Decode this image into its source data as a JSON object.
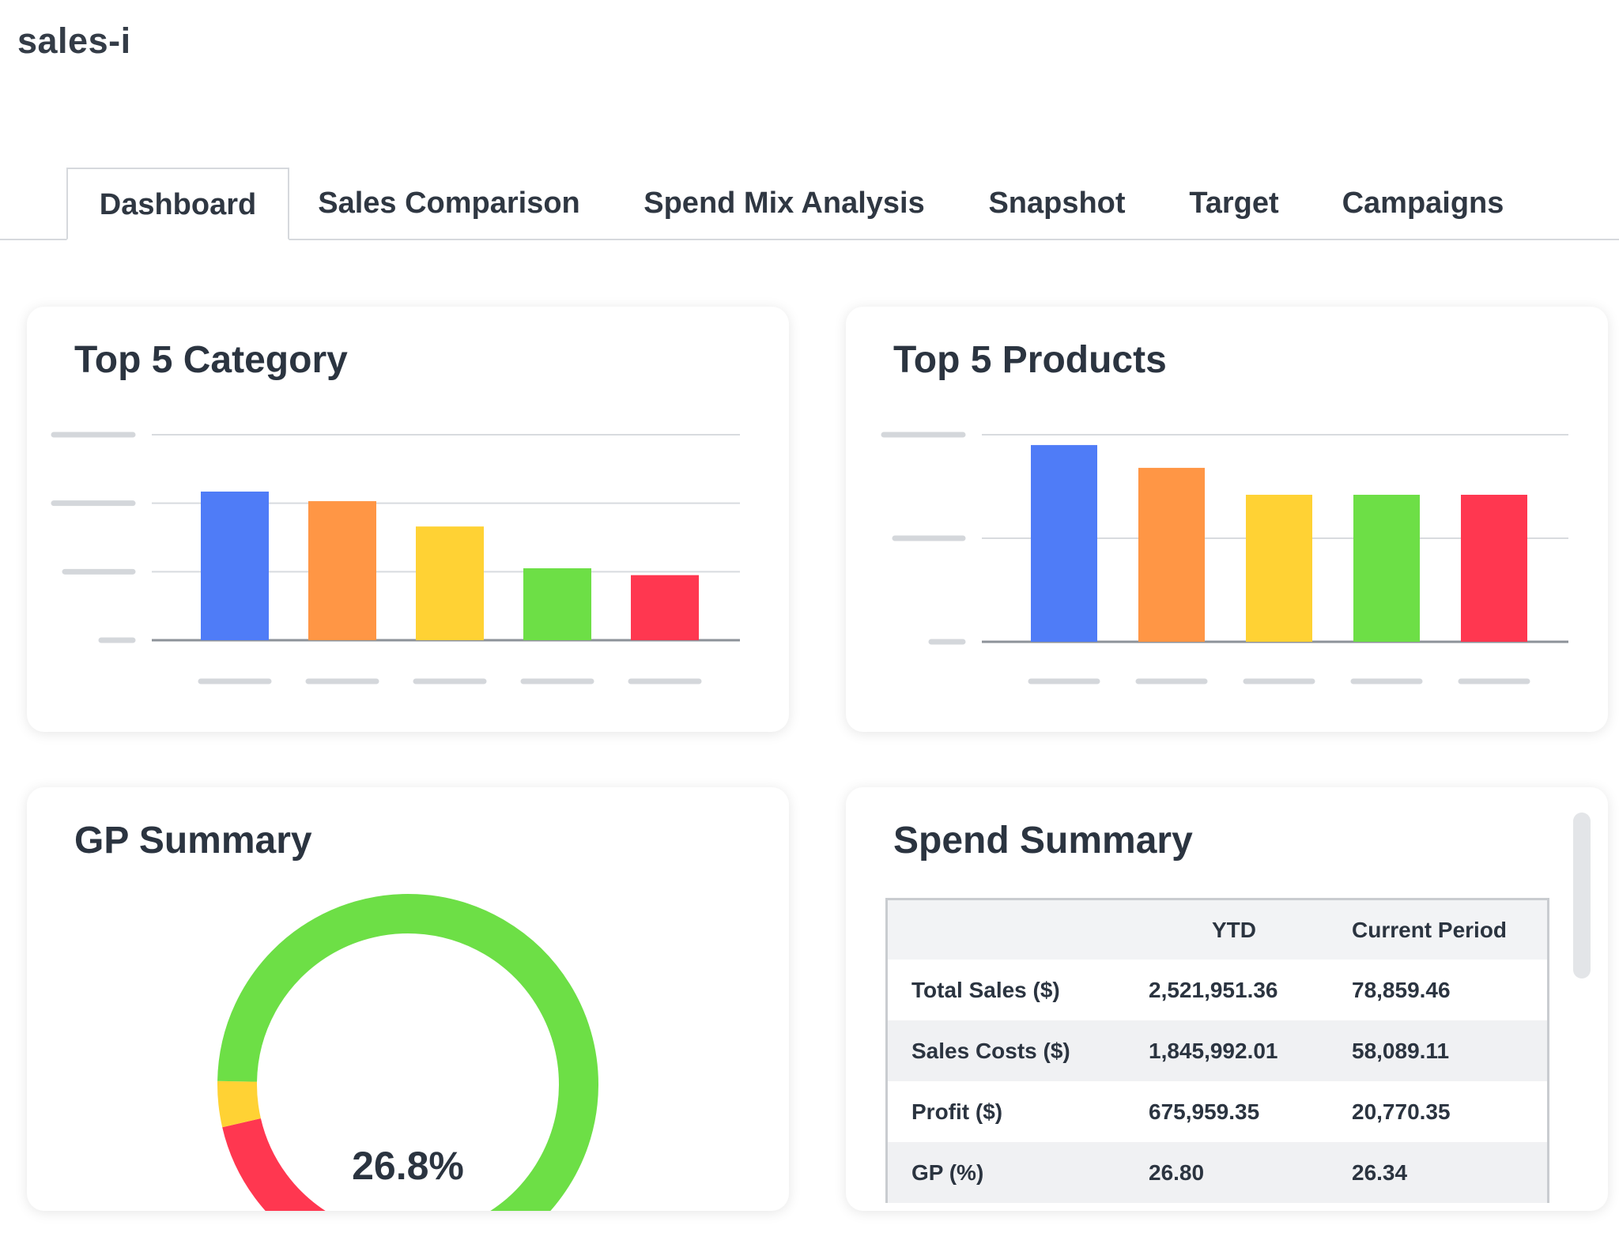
{
  "app": {
    "title": "sales-i"
  },
  "tabs": [
    {
      "label": "Dashboard",
      "active": true
    },
    {
      "label": "Sales Comparison",
      "active": false
    },
    {
      "label": "Spend Mix Analysis",
      "active": false
    },
    {
      "label": "Snapshot",
      "active": false
    },
    {
      "label": "Target",
      "active": false
    },
    {
      "label": "Campaigns",
      "active": false
    }
  ],
  "cards": {
    "top_category": {
      "title": "Top 5 Category"
    },
    "top_products": {
      "title": "Top 5 Products"
    },
    "gp_summary": {
      "title": "GP Summary",
      "value_text": "26.8%"
    },
    "spend_summary": {
      "title": "Spend Summary",
      "columns": [
        "",
        "YTD",
        "Current Period"
      ],
      "rows": [
        [
          "Total Sales ($)",
          "2,521,951.36",
          "78,859.46"
        ],
        [
          "Sales Costs ($)",
          "1,845,992.01",
          "58,089.11"
        ],
        [
          "Profit ($)",
          "675,959.35",
          "20,770.35"
        ],
        [
          "GP (%)",
          "26.80",
          "26.34"
        ]
      ]
    }
  },
  "chart_data": [
    {
      "type": "bar",
      "categories": [
        "",
        "",
        "",
        "",
        ""
      ],
      "values": [
        2.17,
        2.03,
        1.66,
        1.05,
        0.95
      ],
      "ylim": [
        0,
        3
      ],
      "colors": [
        "#4f7cf7",
        "#ff9645",
        "#ffd234",
        "#6ddf46",
        "#ff3750"
      ],
      "grid": true
    },
    {
      "type": "bar",
      "categories": [
        "",
        "",
        "",
        "",
        ""
      ],
      "values": [
        1.9,
        1.68,
        1.42,
        1.42,
        1.42
      ],
      "ylim": [
        0,
        2
      ],
      "colors": [
        "#4f7cf7",
        "#ff9645",
        "#ffd234",
        "#6ddf46",
        "#ff3750"
      ],
      "grid": true
    }
  ],
  "gauge": {
    "value": 26.8,
    "segments": [
      {
        "color": "#ff3750"
      },
      {
        "color": "#ffd234"
      },
      {
        "color": "#6ddf46"
      }
    ]
  }
}
